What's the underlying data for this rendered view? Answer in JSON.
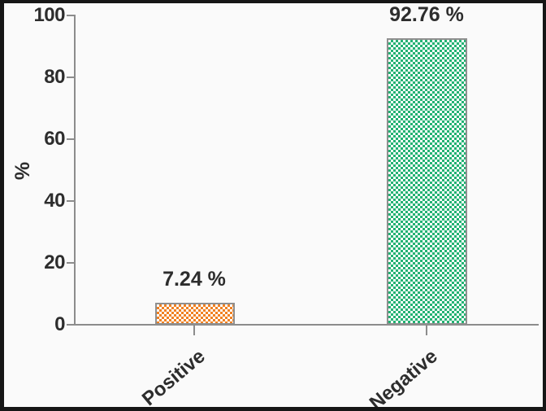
{
  "chart_data": {
    "type": "bar",
    "title": "",
    "xlabel": "",
    "ylabel": "%",
    "categories": [
      "Positive",
      "Negative"
    ],
    "values": [
      7.24,
      92.76
    ],
    "value_labels": [
      "7.24 %",
      "92.76 %"
    ],
    "ylim": [
      0,
      100
    ],
    "yticks": [
      0,
      20,
      40,
      60,
      80,
      100
    ],
    "grid": false,
    "legend": false,
    "bar_pattern": "checkerboard",
    "colors": {
      "bar_fills": [
        "#f08122",
        "#23b273"
      ],
      "bar_pattern_background": "#ffffff",
      "bar_border": "#8f8f8f",
      "axis": "#8c8c8c",
      "text": "#2d2d2d",
      "plot_background": "#fafafa",
      "frame_border": "#161616"
    }
  }
}
